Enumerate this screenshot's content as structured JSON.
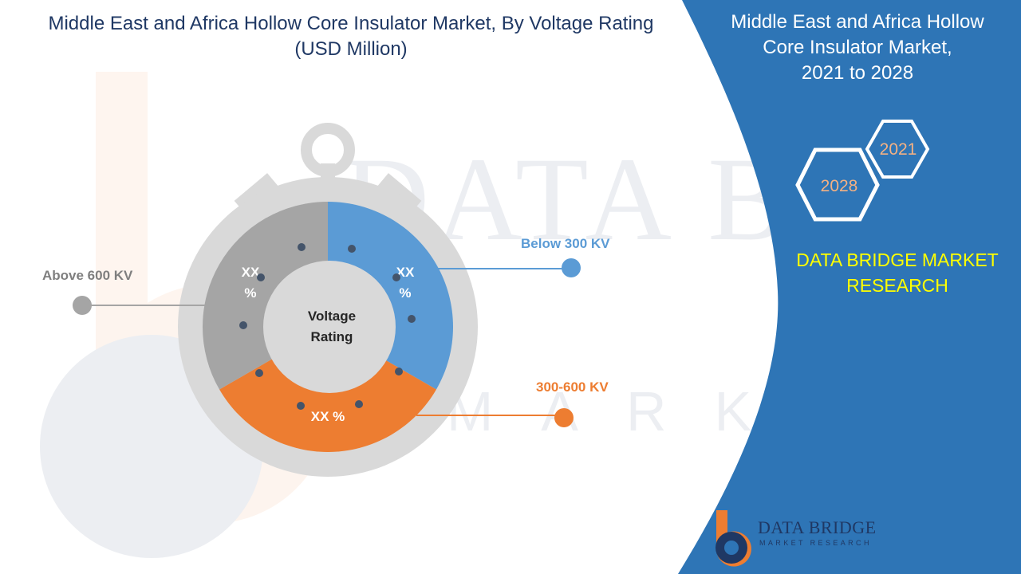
{
  "title_line1": "Middle East and Africa Hollow Core Insulator Market, By Voltage Rating",
  "title_line2": "(USD Million)",
  "panel": {
    "title_line1": "Middle East and Africa Hollow",
    "title_line2": "Core Insulator Market,",
    "title_line3": "2021 to 2028",
    "year_start": "2021",
    "year_end": "2028",
    "brand_line1": "DATA BRIDGE MARKET",
    "brand_line2": "RESEARCH",
    "panel_color": "#2e75b6",
    "brand_color": "#ffff00"
  },
  "logo": {
    "name": "DATA BRIDGE",
    "sub": "MARKET RESEARCH",
    "icon": "data-bridge-logo-icon"
  },
  "chart_data": {
    "type": "pie",
    "center_label_line1": "Voltage",
    "center_label_line2": "Rating",
    "slices": [
      {
        "label": "Below 300 KV",
        "value_label_line1": "XX",
        "value_label_line2": "%",
        "share": 0.3333,
        "color": "#5b9bd5"
      },
      {
        "label": "300-600 KV",
        "value_label_line1": "XX %",
        "value_label_line2": "",
        "share": 0.3333,
        "color": "#ed7d31"
      },
      {
        "label": "Above 600 KV",
        "value_label_line1": "XX",
        "value_label_line2": "%",
        "share": 0.3334,
        "color": "#a5a5a5"
      }
    ]
  }
}
